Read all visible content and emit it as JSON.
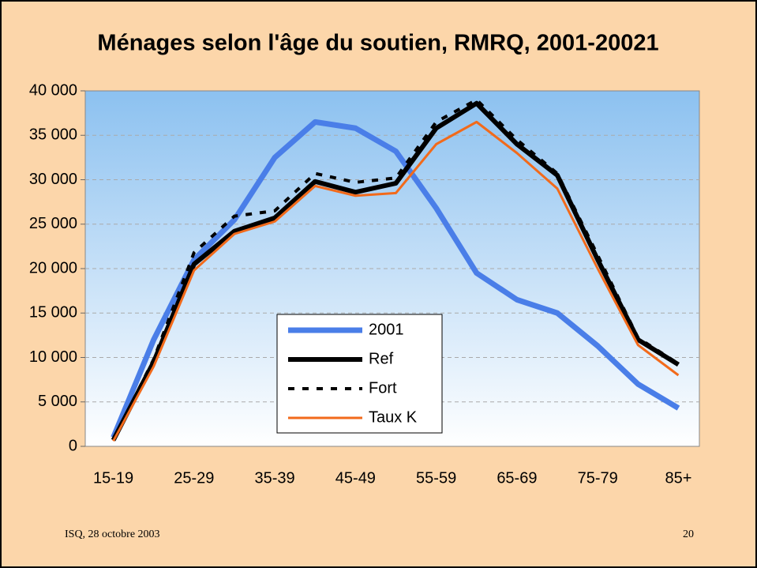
{
  "chart_data": {
    "type": "line",
    "title": "Ménages selon l'âge du soutien, RMRQ, 2001-20021",
    "categories": [
      "15-19",
      null,
      "25-29",
      null,
      "35-39",
      null,
      "45-49",
      null,
      "55-59",
      null,
      "65-69",
      null,
      "75-79",
      null,
      "85+"
    ],
    "series": [
      {
        "name": "2001",
        "color": "#4a7ee8",
        "line_width": 7,
        "dash": false,
        "values": [
          1000,
          12000,
          21000,
          25500,
          32500,
          36500,
          35800,
          33200,
          26800,
          19500,
          16500,
          15000,
          11300,
          7000,
          4300
        ]
      },
      {
        "name": "Ref",
        "color": "#000000",
        "line_width": 6,
        "dash": false,
        "values": [
          700,
          9500,
          20500,
          24200,
          25700,
          29800,
          28600,
          29600,
          35800,
          38600,
          34000,
          30500,
          21000,
          12000,
          9200
        ]
      },
      {
        "name": "Fort",
        "color": "#000000",
        "line_width": 4,
        "dash": true,
        "values": [
          700,
          9800,
          21800,
          25900,
          26500,
          30700,
          29700,
          30200,
          36500,
          39000,
          34500,
          30700,
          21500,
          12200,
          9300
        ]
      },
      {
        "name": "Taux K",
        "color": "#f26a1b",
        "line_width": 3,
        "dash": false,
        "values": [
          600,
          9000,
          19800,
          23900,
          25300,
          29300,
          28200,
          28500,
          34000,
          36500,
          33000,
          29000,
          20000,
          11400,
          8000
        ]
      }
    ],
    "ylim": [
      0,
      40000
    ],
    "yticks": [
      0,
      {
        "value": 5000,
        "label": "5 000"
      },
      {
        "value": 10000,
        "label": "10 000"
      },
      {
        "value": 15000,
        "label": "15 000"
      },
      {
        "value": 20000,
        "label": "20 000"
      },
      {
        "value": 25000,
        "label": "25 000"
      },
      {
        "value": 30000,
        "label": "30 000"
      },
      {
        "value": 35000,
        "label": "35 000"
      },
      {
        "value": 40000,
        "label": "40 000"
      }
    ],
    "grid": true,
    "legend": "lower center"
  },
  "footer": {
    "source": "ISQ, 28 octobre 2003",
    "page": "20"
  }
}
